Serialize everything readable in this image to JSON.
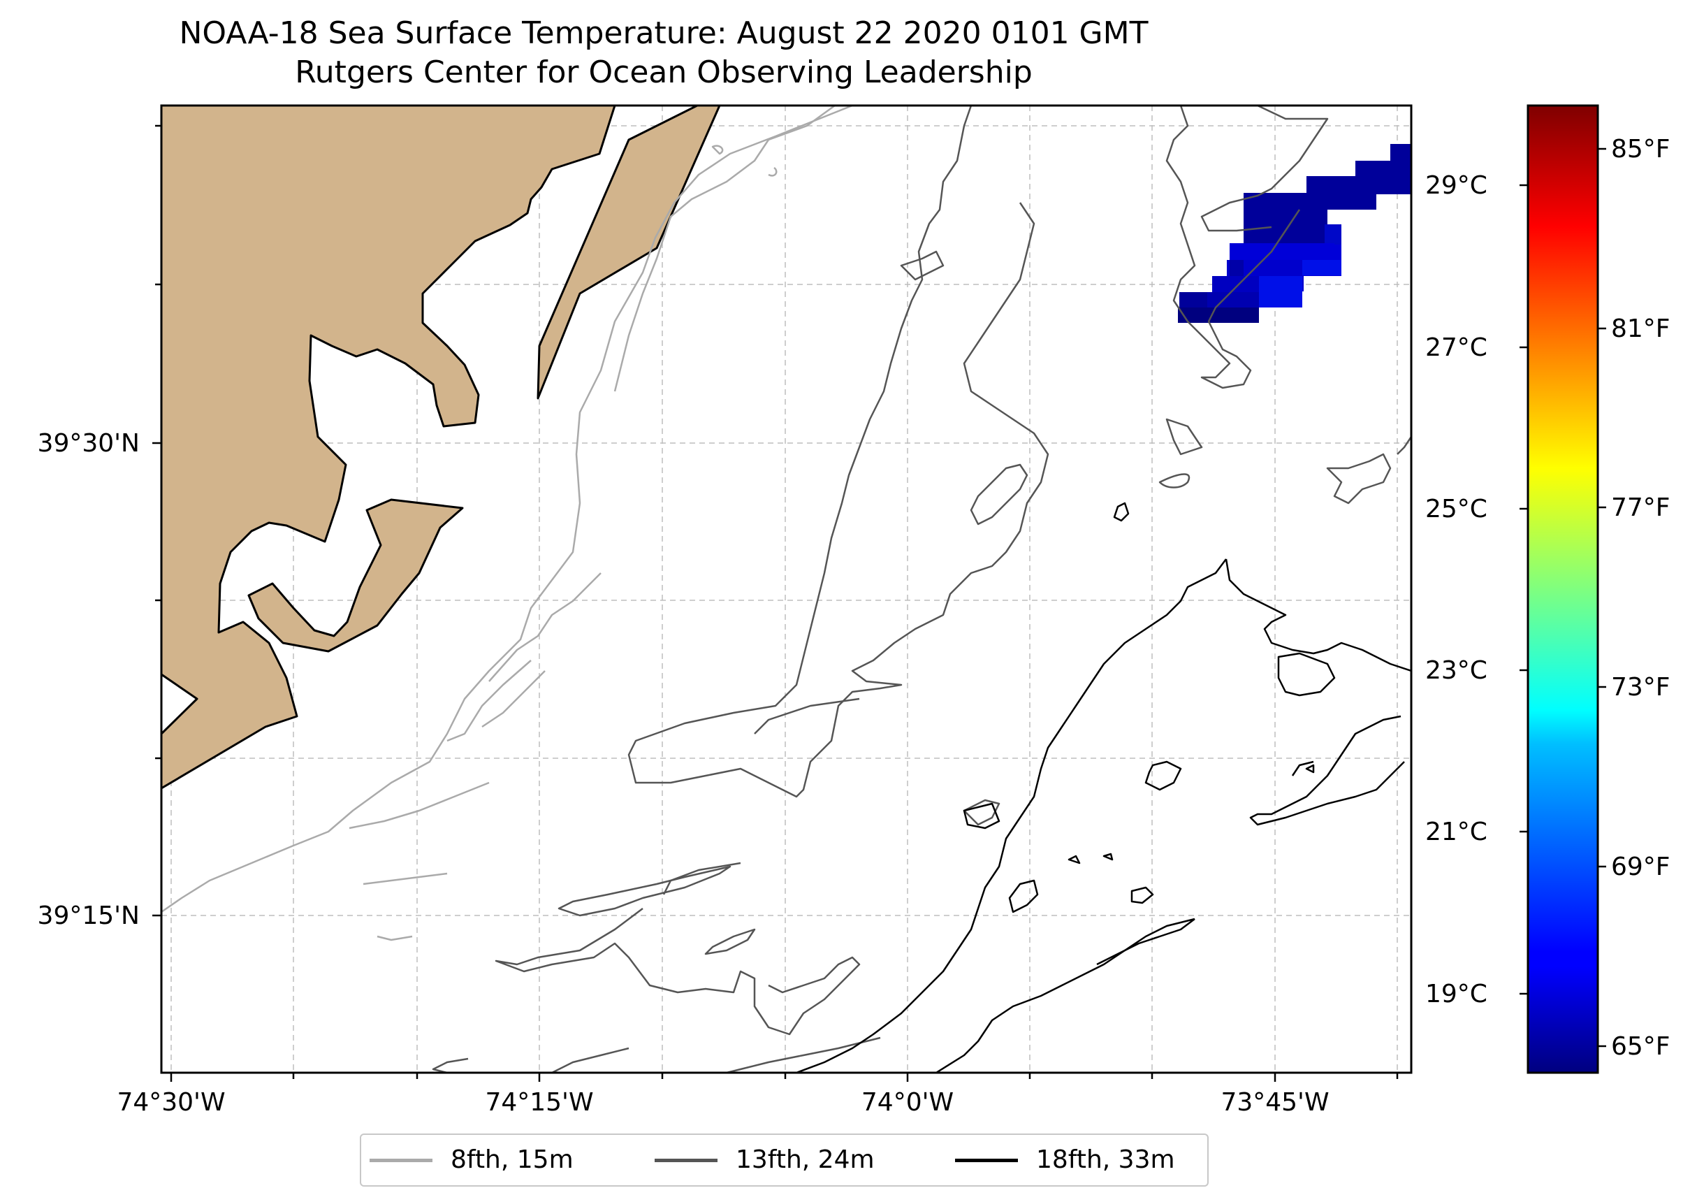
{
  "title": {
    "line1": "NOAA-18 Sea Surface Temperature: August 22 2020 0101 GMT",
    "line2": "Rutgers Center for Ocean Observing Leadership"
  },
  "map": {
    "type": "sea-surface-temperature-map",
    "land_color": "#d2b48c",
    "gridlines": true,
    "lat_ticks": [
      {
        "label": "39°30'N",
        "value": 39.5
      },
      {
        "label": "39°15'N",
        "value": 39.25
      }
    ],
    "lon_ticks": [
      {
        "label": "74°30'W",
        "value": -74.5
      },
      {
        "label": "74°15'W",
        "value": -74.25
      },
      {
        "label": "74°0'W",
        "value": -74.0
      },
      {
        "label": "73°45'W",
        "value": -73.75
      }
    ]
  },
  "colorbar": {
    "colormap": "jet",
    "celsius_ticks": [
      "29°C",
      "27°C",
      "25°C",
      "23°C",
      "21°C",
      "19°C"
    ],
    "fahrenheit_ticks": [
      "85°F",
      "81°F",
      "77°F",
      "73°F",
      "69°F",
      "65°F"
    ]
  },
  "legend": {
    "placement": "bottom-center",
    "items": [
      {
        "label": "8fth, 15m",
        "color": "#aaaaaa"
      },
      {
        "label": "13fth, 24m",
        "color": "#555555"
      },
      {
        "label": "18fth, 33m",
        "color": "#000000"
      }
    ]
  }
}
